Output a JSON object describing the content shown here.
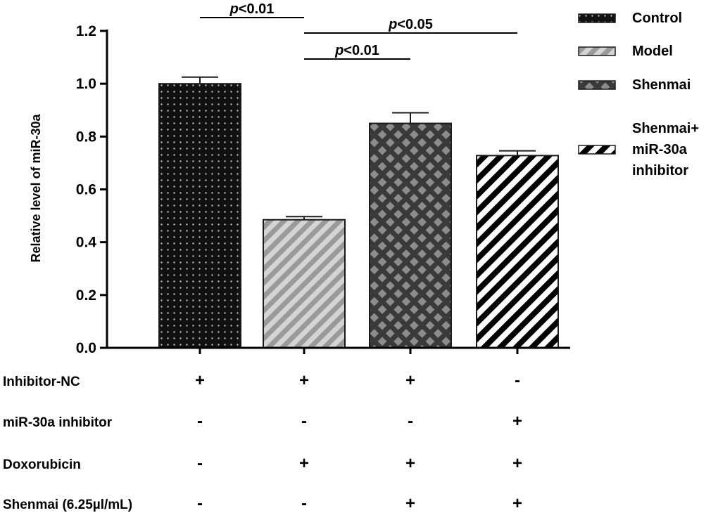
{
  "chart_data": {
    "type": "bar",
    "ylabel": "Relative level of miR-30a",
    "ylim": [
      0,
      1.2
    ],
    "yticks": [
      "0.0",
      "0.2",
      "0.4",
      "0.6",
      "0.8",
      "1.0",
      "1.2"
    ],
    "series": [
      {
        "name": "Control",
        "value": 1.0,
        "error": 0.025
      },
      {
        "name": "Model",
        "value": 0.485,
        "error": 0.012
      },
      {
        "name": "Shenmai",
        "value": 0.85,
        "error": 0.04
      },
      {
        "name": "Shenmai+ miR-30a inhibitor",
        "value": 0.728,
        "error": 0.018
      }
    ],
    "legend": {
      "position": "top-right",
      "items": [
        {
          "label_lines": [
            "Control"
          ],
          "pattern": "dots",
          "color": "#111111"
        },
        {
          "label_lines": [
            "Model"
          ],
          "pattern": "light-stripes",
          "color": "#a8a8a8"
        },
        {
          "label_lines": [
            "Shenmai"
          ],
          "pattern": "checker",
          "color": "#444444"
        },
        {
          "label_lines": [
            "Shenmai+",
            "miR-30a",
            "inhibitor"
          ],
          "pattern": "bold-stripes",
          "color": "#000000"
        }
      ]
    },
    "significance": [
      {
        "from": 0,
        "to": 1,
        "p": "p",
        "rest": "<0.01",
        "level": 0
      },
      {
        "from": 1,
        "to": 3,
        "p": "p",
        "rest": "<0.05",
        "level": 1
      },
      {
        "from": 1,
        "to": 2,
        "p": "p",
        "rest": "<0.01",
        "level": 2
      }
    ],
    "treatments": [
      {
        "label": "Inhibitor-NC",
        "signs": [
          "+",
          "+",
          "+",
          "-"
        ]
      },
      {
        "label": "miR-30a inhibitor",
        "signs": [
          "-",
          "-",
          "-",
          "+"
        ]
      },
      {
        "label": "Doxorubicin",
        "signs": [
          "-",
          "+",
          "+",
          "+"
        ]
      },
      {
        "label": "Shenmai (6.25µl/mL)",
        "signs": [
          "-",
          "-",
          "+",
          "+"
        ]
      }
    ]
  }
}
